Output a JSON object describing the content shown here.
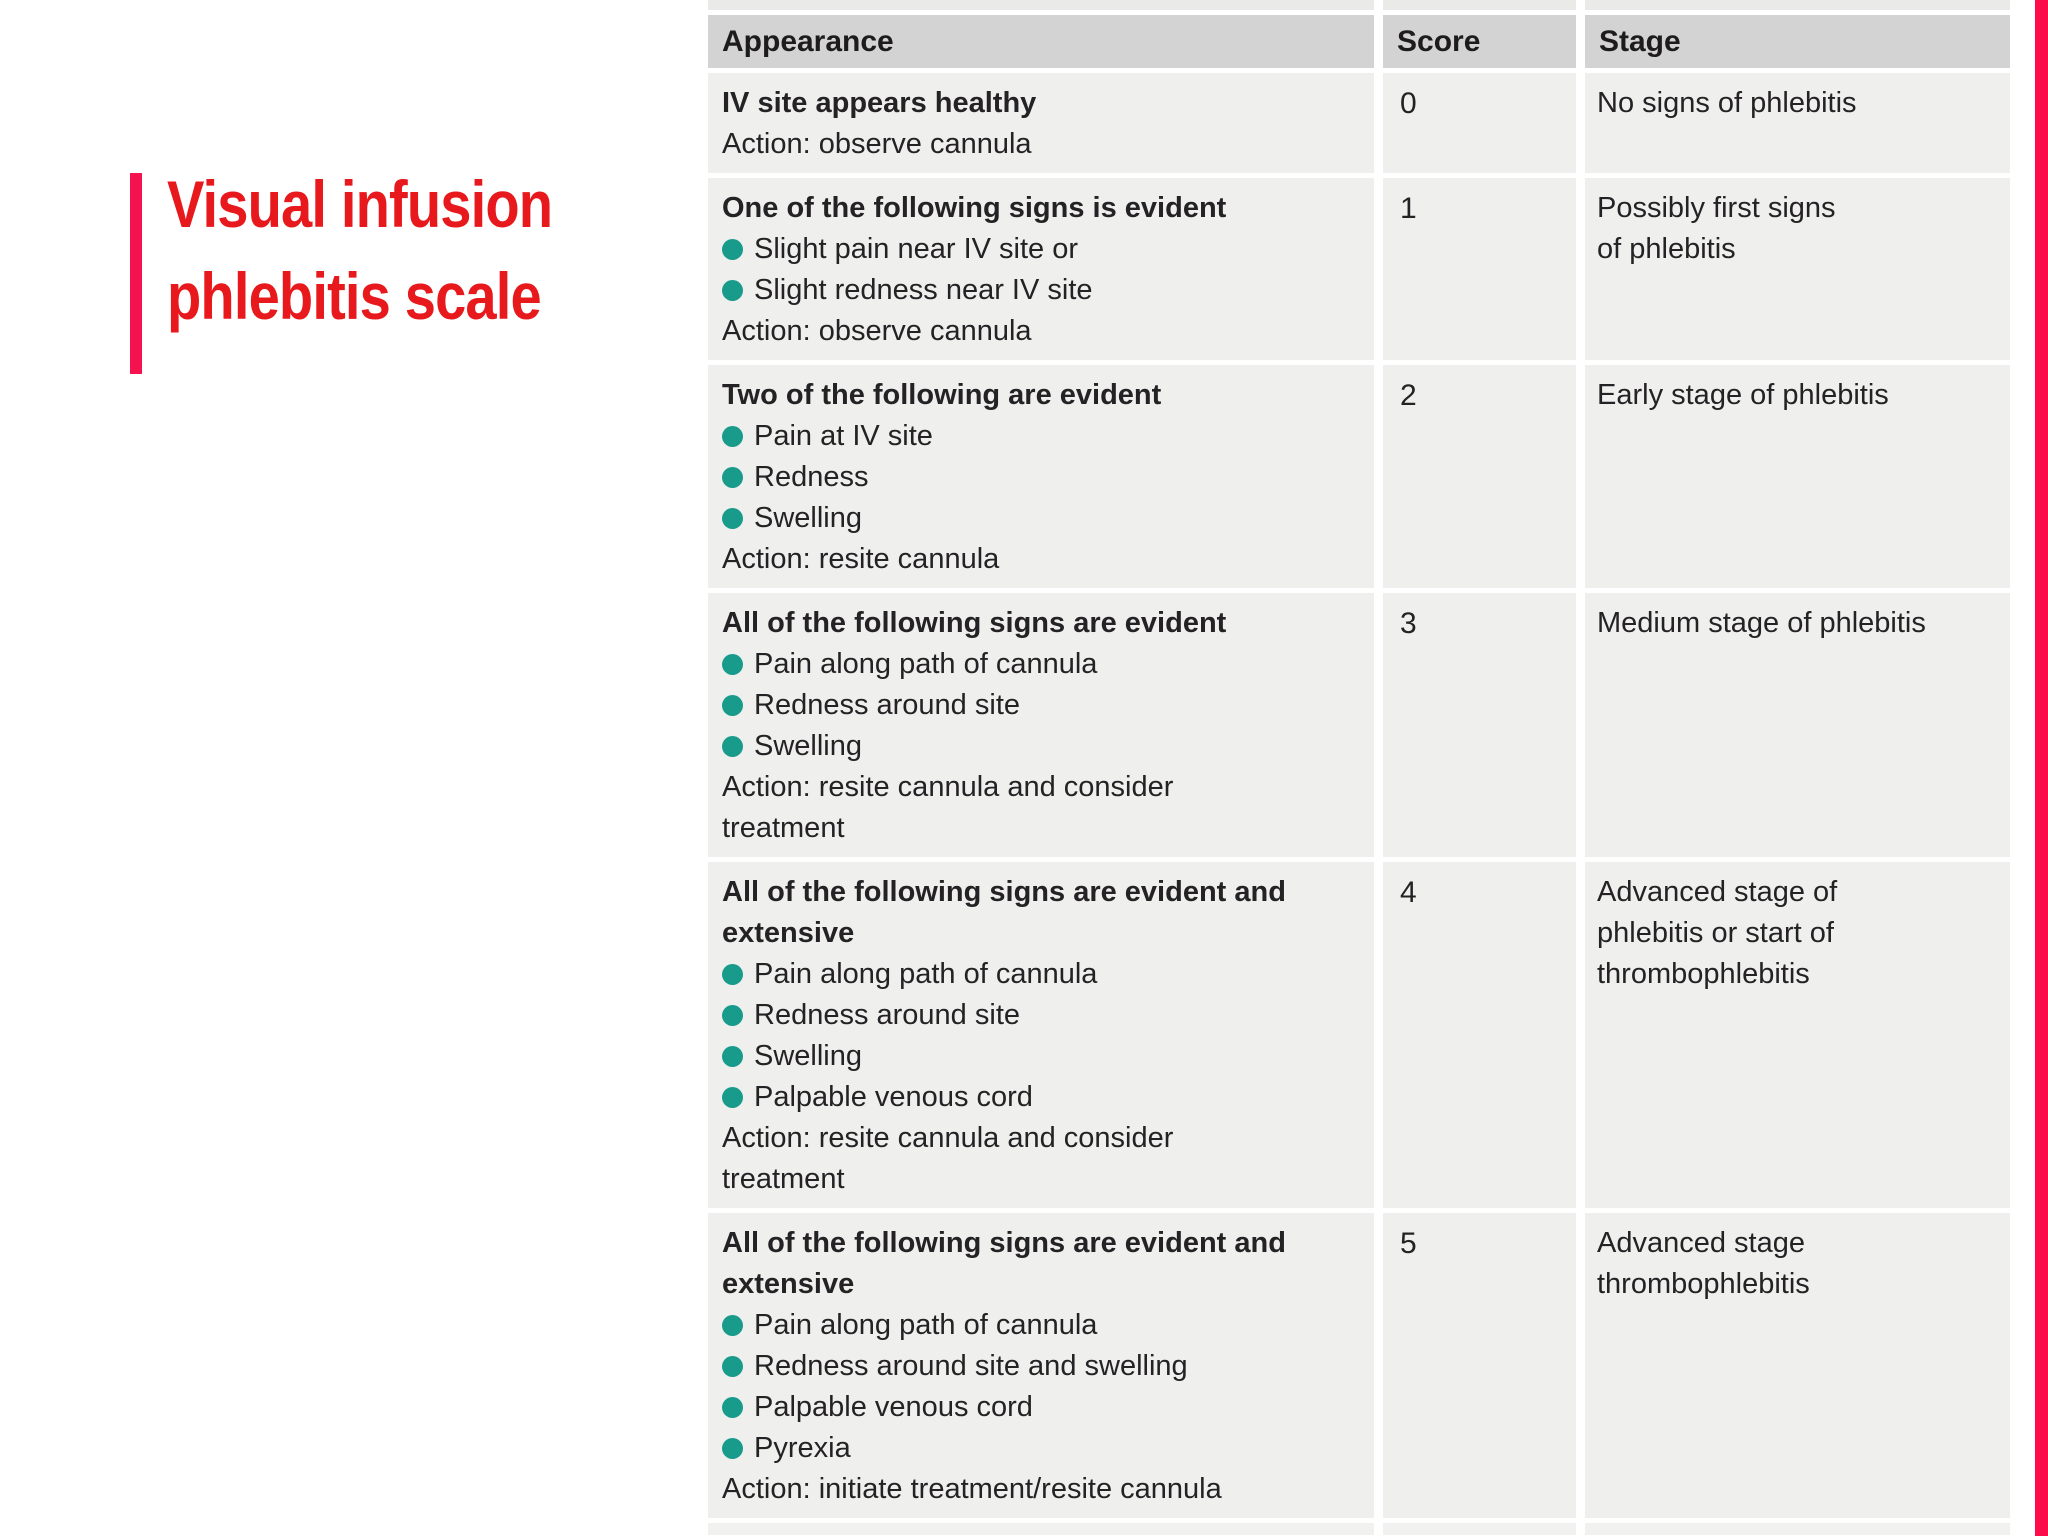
{
  "page": {
    "title_line1": "Visual infusion",
    "title_line2": "phlebitis scale",
    "colors": {
      "title_text": "#e8191d",
      "title_accent_bar": "#f5134f",
      "right_edge_bar": "#fb0d4b",
      "bullet": "#189b8b",
      "header_bg": "#d3d3d3",
      "row_bg": "#efefee"
    }
  },
  "table": {
    "columns": [
      "Appearance",
      "Score",
      "Stage"
    ],
    "rows": [
      {
        "headline": "IV site appears healthy",
        "bullets": [],
        "action": "Action: observe cannula",
        "score": "0",
        "stage": "No signs of phlebitis"
      },
      {
        "headline": "One of the following signs is evident",
        "bullets": [
          "Slight pain near IV site or",
          "Slight redness near IV site"
        ],
        "action": "Action: observe cannula",
        "score": "1",
        "stage": "Possibly first signs\nof phlebitis"
      },
      {
        "headline": "Two of the following are evident",
        "bullets": [
          "Pain at IV site",
          "Redness",
          "Swelling"
        ],
        "action": "Action: resite cannula",
        "score": "2",
        "stage": "Early stage of phlebitis"
      },
      {
        "headline": "All of the following signs are evident",
        "bullets": [
          "Pain along path of cannula",
          "Redness around site",
          "Swelling"
        ],
        "action": "Action: resite cannula and consider\ntreatment",
        "score": "3",
        "stage": "Medium stage of phlebitis"
      },
      {
        "headline": "All of the following signs are evident and\nextensive",
        "bullets": [
          "Pain along path of cannula",
          "Redness around site",
          "Swelling",
          "Palpable venous cord"
        ],
        "action": "Action: resite cannula and consider\ntreatment",
        "score": "4",
        "stage": "Advanced stage of\nphlebitis or start of\nthrombophlebitis"
      },
      {
        "headline": "All of the following signs are evident and\nextensive",
        "bullets": [
          "Pain along path of cannula",
          "Redness around site and swelling",
          "Palpable venous cord",
          "Pyrexia"
        ],
        "action": "Action: initiate treatment/resite cannula",
        "score": "5",
        "stage": "Advanced stage\nthrombophlebitis"
      }
    ]
  }
}
